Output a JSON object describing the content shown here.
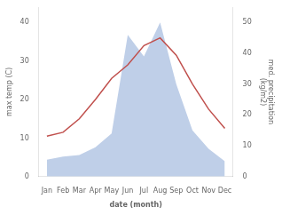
{
  "chart_data": {
    "type": "line",
    "xlabel": "date (month)",
    "ylabel": "max temp (C)",
    "y2label": "med. precipitation\n(kg/m2)",
    "categories": [
      "Jan",
      "Feb",
      "Mar",
      "Apr",
      "May",
      "Jun",
      "Jul",
      "Aug",
      "Sep",
      "Oct",
      "Nov",
      "Dec"
    ],
    "series": [
      {
        "type": "area",
        "color": "#bfcfe8",
        "axis": "y2",
        "values": [
          5.5,
          6.5,
          7.0,
          9.5,
          14.0,
          46.0,
          39.0,
          50.0,
          30.0,
          15.0,
          9.0,
          5.0
        ]
      },
      {
        "type": "line",
        "color": "#c0504d",
        "values": [
          10.5,
          11.5,
          15.0,
          20.0,
          25.5,
          29.0,
          34.0,
          36.0,
          31.5,
          24.0,
          17.5,
          12.5
        ]
      }
    ],
    "ylim": [
      0,
      44
    ],
    "yticks": [
      0,
      10,
      20,
      30,
      40
    ],
    "y2lim": [
      0,
      55
    ],
    "y2ticks": [
      0,
      10,
      20,
      30,
      40,
      50
    ],
    "grid": false
  }
}
